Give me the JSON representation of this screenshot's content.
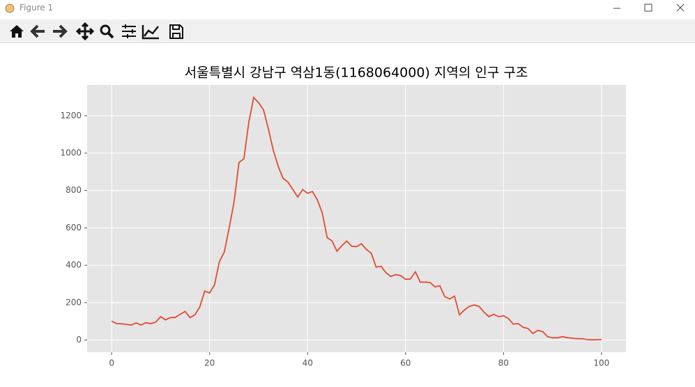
{
  "window": {
    "title": "Figure 1"
  },
  "chart_data": {
    "type": "line",
    "title": "서울특별시 강남구 역삼1동(1168064000) 지역의 인구 구조",
    "x": [
      0,
      1,
      2,
      3,
      4,
      5,
      6,
      7,
      8,
      9,
      10,
      11,
      12,
      13,
      14,
      15,
      16,
      17,
      18,
      19,
      20,
      21,
      22,
      23,
      24,
      25,
      26,
      27,
      28,
      29,
      30,
      31,
      32,
      33,
      34,
      35,
      36,
      37,
      38,
      39,
      40,
      41,
      42,
      43,
      44,
      45,
      46,
      47,
      48,
      49,
      50,
      51,
      52,
      53,
      54,
      55,
      56,
      57,
      58,
      59,
      60,
      61,
      62,
      63,
      64,
      65,
      66,
      67,
      68,
      69,
      70,
      71,
      72,
      73,
      74,
      75,
      76,
      77,
      78,
      79,
      80,
      81,
      82,
      83,
      84,
      85,
      86,
      87,
      88,
      89,
      90,
      91,
      92,
      93,
      94,
      95,
      96,
      97,
      98,
      99,
      100
    ],
    "y": [
      101,
      88,
      87,
      84,
      80,
      92,
      80,
      93,
      88,
      96,
      125,
      108,
      120,
      121,
      138,
      153,
      120,
      135,
      178,
      262,
      252,
      295,
      420,
      470,
      600,
      740,
      950,
      970,
      1165,
      1298,
      1270,
      1232,
      1130,
      1015,
      930,
      865,
      845,
      805,
      765,
      805,
      785,
      795,
      750,
      680,
      548,
      530,
      475,
      505,
      530,
      502,
      500,
      515,
      485,
      465,
      390,
      395,
      360,
      340,
      350,
      345,
      325,
      327,
      365,
      310,
      310,
      308,
      285,
      290,
      232,
      220,
      235,
      135,
      160,
      180,
      188,
      180,
      150,
      125,
      138,
      125,
      130,
      115,
      85,
      88,
      68,
      62,
      35,
      52,
      45,
      18,
      12,
      12,
      18,
      13,
      10,
      7,
      7,
      3,
      1,
      2,
      3
    ],
    "color": "#e24a33",
    "xlim": [
      -5,
      105
    ],
    "xticks": [
      0,
      20,
      40,
      60,
      80,
      100
    ],
    "ylim": [
      -65,
      1365
    ],
    "yticks": [
      0,
      200,
      400,
      600,
      800,
      1000,
      1200
    ],
    "grid": true
  }
}
